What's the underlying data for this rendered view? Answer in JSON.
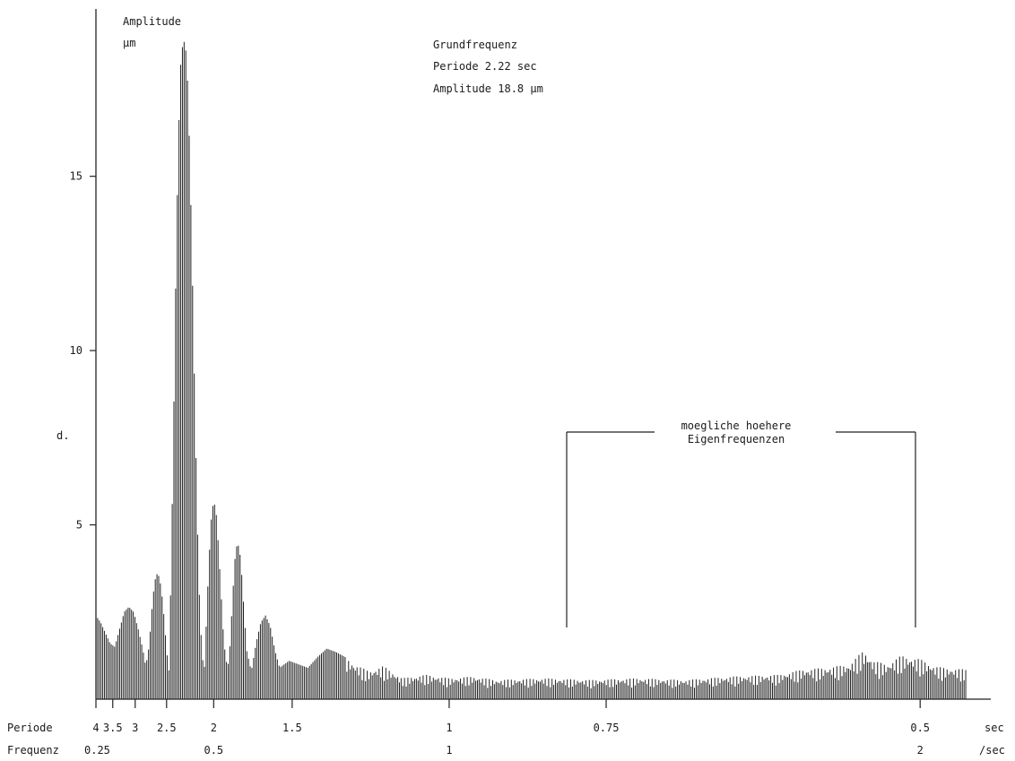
{
  "chart_data": {
    "type": "bar",
    "ylabel": "Amplitude",
    "yunit": "µm",
    "ylim": [
      0,
      19.8
    ],
    "yticks": [
      5,
      10,
      15
    ],
    "xaxis": {
      "scale": "linear in frequency",
      "xlim": [
        0.25,
        2.15
      ],
      "period_label": "Periode",
      "period_unit": "sec",
      "period_ticks": [
        {
          "label": "4",
          "period": 4
        },
        {
          "label": "3.5",
          "period": 3.5
        },
        {
          "label": "3",
          "period": 3
        },
        {
          "label": "2.5",
          "period": 2.5
        },
        {
          "label": "2",
          "period": 2
        },
        {
          "label": "1.5",
          "period": 1.5
        },
        {
          "label": "1",
          "period": 1
        },
        {
          "label": "0.75",
          "period": 0.75
        },
        {
          "label": "0.5",
          "period": 0.5
        }
      ],
      "frequency_label": "Frequenz",
      "frequency_unit": "/sec",
      "frequency_ticks": [
        {
          "label": "0.25",
          "freq": 0.25
        },
        {
          "label": "0.5",
          "freq": 0.5
        },
        {
          "label": "1",
          "freq": 1
        },
        {
          "label": "2",
          "freq": 2
        }
      ]
    },
    "spectrum_profile": {
      "description_points_freq_amplitude": [
        [
          0.25,
          2.4
        ],
        [
          0.26,
          2.2
        ],
        [
          0.27,
          1.9
        ],
        [
          0.28,
          1.6
        ],
        [
          0.29,
          1.5
        ],
        [
          0.3,
          2.0
        ],
        [
          0.31,
          2.5
        ],
        [
          0.32,
          2.65
        ],
        [
          0.33,
          2.5
        ],
        [
          0.34,
          2.0
        ],
        [
          0.35,
          1.4
        ],
        [
          0.355,
          1.0
        ],
        [
          0.36,
          1.2
        ],
        [
          0.365,
          1.9
        ],
        [
          0.37,
          2.8
        ],
        [
          0.375,
          3.4
        ],
        [
          0.38,
          3.6
        ],
        [
          0.385,
          3.5
        ],
        [
          0.39,
          3.0
        ],
        [
          0.395,
          2.3
        ],
        [
          0.4,
          1.4
        ],
        [
          0.405,
          0.8
        ],
        [
          0.41,
          4.0
        ],
        [
          0.415,
          8.0
        ],
        [
          0.42,
          12.5
        ],
        [
          0.425,
          16.0
        ],
        [
          0.43,
          18.2
        ],
        [
          0.435,
          18.9
        ],
        [
          0.44,
          18.8
        ],
        [
          0.445,
          17.6
        ],
        [
          0.45,
          15.2
        ],
        [
          0.455,
          12.0
        ],
        [
          0.46,
          8.5
        ],
        [
          0.465,
          5.2
        ],
        [
          0.47,
          2.8
        ],
        [
          0.475,
          1.3
        ],
        [
          0.48,
          0.8
        ],
        [
          0.485,
          2.4
        ],
        [
          0.49,
          4.0
        ],
        [
          0.495,
          5.2
        ],
        [
          0.5,
          5.7
        ],
        [
          0.505,
          5.4
        ],
        [
          0.51,
          4.4
        ],
        [
          0.515,
          3.2
        ],
        [
          0.52,
          2.0
        ],
        [
          0.525,
          1.2
        ],
        [
          0.53,
          0.9
        ],
        [
          0.535,
          1.6
        ],
        [
          0.54,
          2.9
        ],
        [
          0.545,
          4.0
        ],
        [
          0.55,
          4.5
        ],
        [
          0.555,
          4.3
        ],
        [
          0.56,
          3.5
        ],
        [
          0.565,
          2.4
        ],
        [
          0.57,
          1.4
        ],
        [
          0.58,
          0.8
        ],
        [
          0.59,
          1.6
        ],
        [
          0.6,
          2.2
        ],
        [
          0.61,
          2.4
        ],
        [
          0.62,
          2.1
        ],
        [
          0.63,
          1.4
        ],
        [
          0.64,
          0.9
        ],
        [
          0.66,
          1.1
        ],
        [
          0.68,
          1.0
        ],
        [
          0.7,
          0.9
        ],
        [
          0.72,
          1.2
        ],
        [
          0.74,
          1.45
        ],
        [
          0.76,
          1.35
        ],
        [
          0.78,
          1.2
        ],
        [
          0.8,
          1.0
        ],
        [
          0.83,
          0.8
        ],
        [
          0.86,
          0.95
        ],
        [
          0.9,
          0.6
        ],
        [
          0.95,
          0.7
        ],
        [
          1.0,
          0.6
        ],
        [
          1.05,
          0.65
        ],
        [
          1.1,
          0.55
        ],
        [
          1.2,
          0.6
        ],
        [
          1.3,
          0.55
        ],
        [
          1.4,
          0.6
        ],
        [
          1.5,
          0.55
        ],
        [
          1.6,
          0.65
        ],
        [
          1.7,
          0.7
        ],
        [
          1.75,
          0.85
        ],
        [
          1.8,
          0.9
        ],
        [
          1.85,
          1.0
        ],
        [
          1.88,
          1.4
        ],
        [
          1.9,
          1.1
        ],
        [
          1.93,
          1.0
        ],
        [
          1.96,
          1.25
        ],
        [
          2.0,
          1.15
        ],
        [
          2.03,
          0.95
        ],
        [
          2.05,
          0.9
        ],
        [
          2.1,
          0.85
        ]
      ]
    },
    "annotations": {
      "ylabel_line1": "Amplitude",
      "ylabel_line2": "µm",
      "peak_title": "Grundfrequenz",
      "peak_period": "Periode  2.22 sec",
      "peak_amplitude": "Amplitude  18.8 µm",
      "bracket_line1": "moegliche hoehere",
      "bracket_line2": "Eigenfrequenzen",
      "side_mark": "d."
    }
  }
}
